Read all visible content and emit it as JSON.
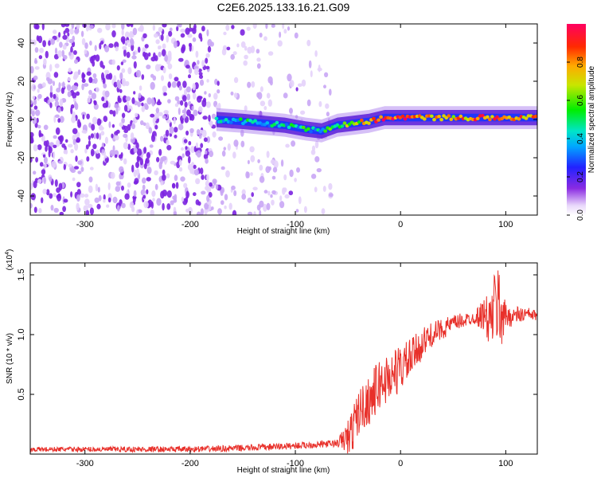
{
  "figure_title": "C2E6.2025.133.16.21.G09",
  "chart_data": [
    {
      "type": "heatmap",
      "title": "C2E6.2025.133.16.21.G09",
      "xlabel": "Height of straight line (km)",
      "ylabel": "Frequency (Hz)",
      "xlim": [
        -352,
        130
      ],
      "ylim": [
        -50,
        50
      ],
      "xticks": [
        -300,
        -200,
        -100,
        0,
        100
      ],
      "xtick_labels": [
        "-300",
        "-200",
        "-100",
        "0",
        "100"
      ],
      "yticks": [
        -40,
        -20,
        0,
        20,
        40
      ],
      "ytick_labels": [
        "-40",
        "-20",
        "0",
        "20",
        "40"
      ],
      "colorbar": {
        "label": "Normalized spectral amplitude",
        "range": [
          0,
          1
        ],
        "ticks": [
          0.0,
          0.2,
          0.4,
          0.6,
          0.8
        ],
        "tick_labels": [
          "0.0",
          "0.2",
          "0.4",
          "0.6",
          "0.8"
        ],
        "colormap": "rainbow (violet to red)"
      },
      "ridge": {
        "description": "narrow high-amplitude line near 0 Hz for heights above about -175 km",
        "points": [
          {
            "x": -175,
            "y": 0,
            "amp": 0.35
          },
          {
            "x": -150,
            "y": -1,
            "amp": 0.45
          },
          {
            "x": -130,
            "y": -2,
            "amp": 0.4
          },
          {
            "x": -110,
            "y": -3,
            "amp": 0.45
          },
          {
            "x": -90,
            "y": -5,
            "amp": 0.45
          },
          {
            "x": -75,
            "y": -6,
            "amp": 0.4
          },
          {
            "x": -60,
            "y": -3,
            "amp": 0.6
          },
          {
            "x": -45,
            "y": -2,
            "amp": 0.65
          },
          {
            "x": -30,
            "y": -1,
            "amp": 0.75
          },
          {
            "x": -15,
            "y": 1,
            "amp": 0.9
          },
          {
            "x": 0,
            "y": 1,
            "amp": 0.9
          },
          {
            "x": 20,
            "y": 1,
            "amp": 0.85
          },
          {
            "x": 50,
            "y": 1,
            "amp": 0.75
          },
          {
            "x": 80,
            "y": 1,
            "amp": 0.85
          },
          {
            "x": 95,
            "y": 1,
            "amp": 0.85
          },
          {
            "x": 130,
            "y": 1,
            "amp": 0.75
          }
        ]
      },
      "noise_region": {
        "x_from": -352,
        "x_to": -65,
        "description": "scattered low-amplitude violet speckle across all frequencies, densest below -180 km"
      }
    },
    {
      "type": "line",
      "xlabel": "Height of straight line (km)",
      "ylabel": "SNR (10 * v/v)",
      "y_multiplier_label": "(x10",
      "y_multiplier_exponent": "4",
      "y_multiplier_close": ")",
      "xlim": [
        -352,
        130
      ],
      "ylim": [
        0,
        1.6
      ],
      "xticks": [
        -300,
        -200,
        -100,
        0,
        100
      ],
      "xtick_labels": [
        "-300",
        "-200",
        "-100",
        "0",
        "100"
      ],
      "yticks": [
        0.5,
        1.0,
        1.5
      ],
      "ytick_labels": [
        "0.5",
        "1.0",
        "1.5"
      ],
      "color": "#e8302a",
      "series_profile": [
        {
          "x": -352,
          "y": 0.04
        },
        {
          "x": -300,
          "y": 0.04
        },
        {
          "x": -250,
          "y": 0.04
        },
        {
          "x": -200,
          "y": 0.04
        },
        {
          "x": -150,
          "y": 0.05
        },
        {
          "x": -100,
          "y": 0.07
        },
        {
          "x": -60,
          "y": 0.09
        },
        {
          "x": -48,
          "y": 0.15
        },
        {
          "x": -40,
          "y": 0.35
        },
        {
          "x": -30,
          "y": 0.45
        },
        {
          "x": -20,
          "y": 0.58
        },
        {
          "x": -10,
          "y": 0.65
        },
        {
          "x": 0,
          "y": 0.72
        },
        {
          "x": 10,
          "y": 0.8
        },
        {
          "x": 20,
          "y": 0.92
        },
        {
          "x": 30,
          "y": 1.0
        },
        {
          "x": 40,
          "y": 1.05
        },
        {
          "x": 50,
          "y": 1.09
        },
        {
          "x": 60,
          "y": 1.12
        },
        {
          "x": 70,
          "y": 1.14
        },
        {
          "x": 80,
          "y": 1.17
        },
        {
          "x": 85,
          "y": 1.1
        },
        {
          "x": 90,
          "y": 1.25
        },
        {
          "x": 95,
          "y": 1.22
        },
        {
          "x": 100,
          "y": 1.15
        },
        {
          "x": 110,
          "y": 1.16
        },
        {
          "x": 120,
          "y": 1.17
        },
        {
          "x": 130,
          "y": 1.16
        }
      ],
      "noise_amplitude_profile": [
        {
          "x": -352,
          "a": 0.02
        },
        {
          "x": -60,
          "a": 0.03
        },
        {
          "x": -48,
          "a": 0.18
        },
        {
          "x": -20,
          "a": 0.22
        },
        {
          "x": 0,
          "a": 0.2
        },
        {
          "x": 30,
          "a": 0.1
        },
        {
          "x": 70,
          "a": 0.05
        },
        {
          "x": 80,
          "a": 0.15
        },
        {
          "x": 95,
          "a": 0.4
        },
        {
          "x": 100,
          "a": 0.1
        },
        {
          "x": 130,
          "a": 0.04
        }
      ]
    }
  ]
}
